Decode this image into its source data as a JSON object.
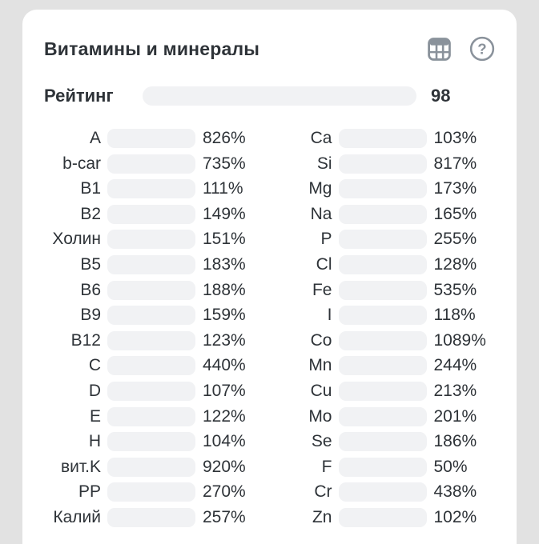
{
  "colors": {
    "bg": "#e2e2e2",
    "card": "#ffffff",
    "text": "#2e3338",
    "icon": "#8a929b",
    "track": "#f1f2f4",
    "green": "#2fc873",
    "yellow": "#efd53b",
    "blue": "#3e9bd8",
    "purple": "#9b5bb5"
  },
  "header": {
    "title": "Витамины и минералы",
    "icons": [
      "table-icon",
      "help-icon"
    ]
  },
  "rating": {
    "label": "Рейтинг",
    "value": 98,
    "percent": 98,
    "max": 100
  },
  "chart_data": {
    "type": "bar",
    "title": "Витамины и минералы",
    "unit": "% of daily norm",
    "note": "bar fill is capped at 100%",
    "rating": 98,
    "columns": [
      {
        "name": "vitamins",
        "rows": [
          {
            "label": "A",
            "percent": 826,
            "display": "826%",
            "color": "yellow"
          },
          {
            "label": "b-car",
            "percent": 735,
            "display": "735%",
            "color": "yellow"
          },
          {
            "label": "B1",
            "percent": 111,
            "display": "111%",
            "color": "yellow"
          },
          {
            "label": "B2",
            "percent": 149,
            "display": "149%",
            "color": "yellow"
          },
          {
            "label": "Холин",
            "percent": 151,
            "display": "151%",
            "color": "yellow"
          },
          {
            "label": "B5",
            "percent": 183,
            "display": "183%",
            "color": "yellow"
          },
          {
            "label": "B6",
            "percent": 188,
            "display": "188%",
            "color": "yellow"
          },
          {
            "label": "B9",
            "percent": 159,
            "display": "159%",
            "color": "yellow"
          },
          {
            "label": "B12",
            "percent": 123,
            "display": "123%",
            "color": "yellow"
          },
          {
            "label": "C",
            "percent": 440,
            "display": "440%",
            "color": "yellow"
          },
          {
            "label": "D",
            "percent": 107,
            "display": "107%",
            "color": "yellow"
          },
          {
            "label": "E",
            "percent": 122,
            "display": "122%",
            "color": "yellow"
          },
          {
            "label": "H",
            "percent": 104,
            "display": "104%",
            "color": "yellow"
          },
          {
            "label": "вит.K",
            "percent": 920,
            "display": "920%",
            "color": "yellow"
          },
          {
            "label": "PP",
            "percent": 270,
            "display": "270%",
            "color": "yellow"
          },
          {
            "label": "Калий",
            "percent": 257,
            "display": "257%",
            "color": "blue"
          }
        ]
      },
      {
        "name": "minerals",
        "rows": [
          {
            "label": "Ca",
            "percent": 103,
            "display": "103%",
            "color": "blue"
          },
          {
            "label": "Si",
            "percent": 817,
            "display": "817%",
            "color": "purple"
          },
          {
            "label": "Mg",
            "percent": 173,
            "display": "173%",
            "color": "blue"
          },
          {
            "label": "Na",
            "percent": 165,
            "display": "165%",
            "color": "blue"
          },
          {
            "label": "P",
            "percent": 255,
            "display": "255%",
            "color": "blue"
          },
          {
            "label": "Cl",
            "percent": 128,
            "display": "128%",
            "color": "blue"
          },
          {
            "label": "Fe",
            "percent": 535,
            "display": "535%",
            "color": "purple"
          },
          {
            "label": "I",
            "percent": 118,
            "display": "118%",
            "color": "purple"
          },
          {
            "label": "Co",
            "percent": 1089,
            "display": "1089%",
            "color": "purple"
          },
          {
            "label": "Mn",
            "percent": 244,
            "display": "244%",
            "color": "purple"
          },
          {
            "label": "Cu",
            "percent": 213,
            "display": "213%",
            "color": "purple"
          },
          {
            "label": "Mo",
            "percent": 201,
            "display": "201%",
            "color": "purple"
          },
          {
            "label": "Se",
            "percent": 186,
            "display": "186%",
            "color": "purple"
          },
          {
            "label": "F",
            "percent": 50,
            "display": "50%",
            "color": "purple"
          },
          {
            "label": "Cr",
            "percent": 438,
            "display": "438%",
            "color": "purple"
          },
          {
            "label": "Zn",
            "percent": 102,
            "display": "102%",
            "color": "purple"
          }
        ]
      }
    ]
  }
}
